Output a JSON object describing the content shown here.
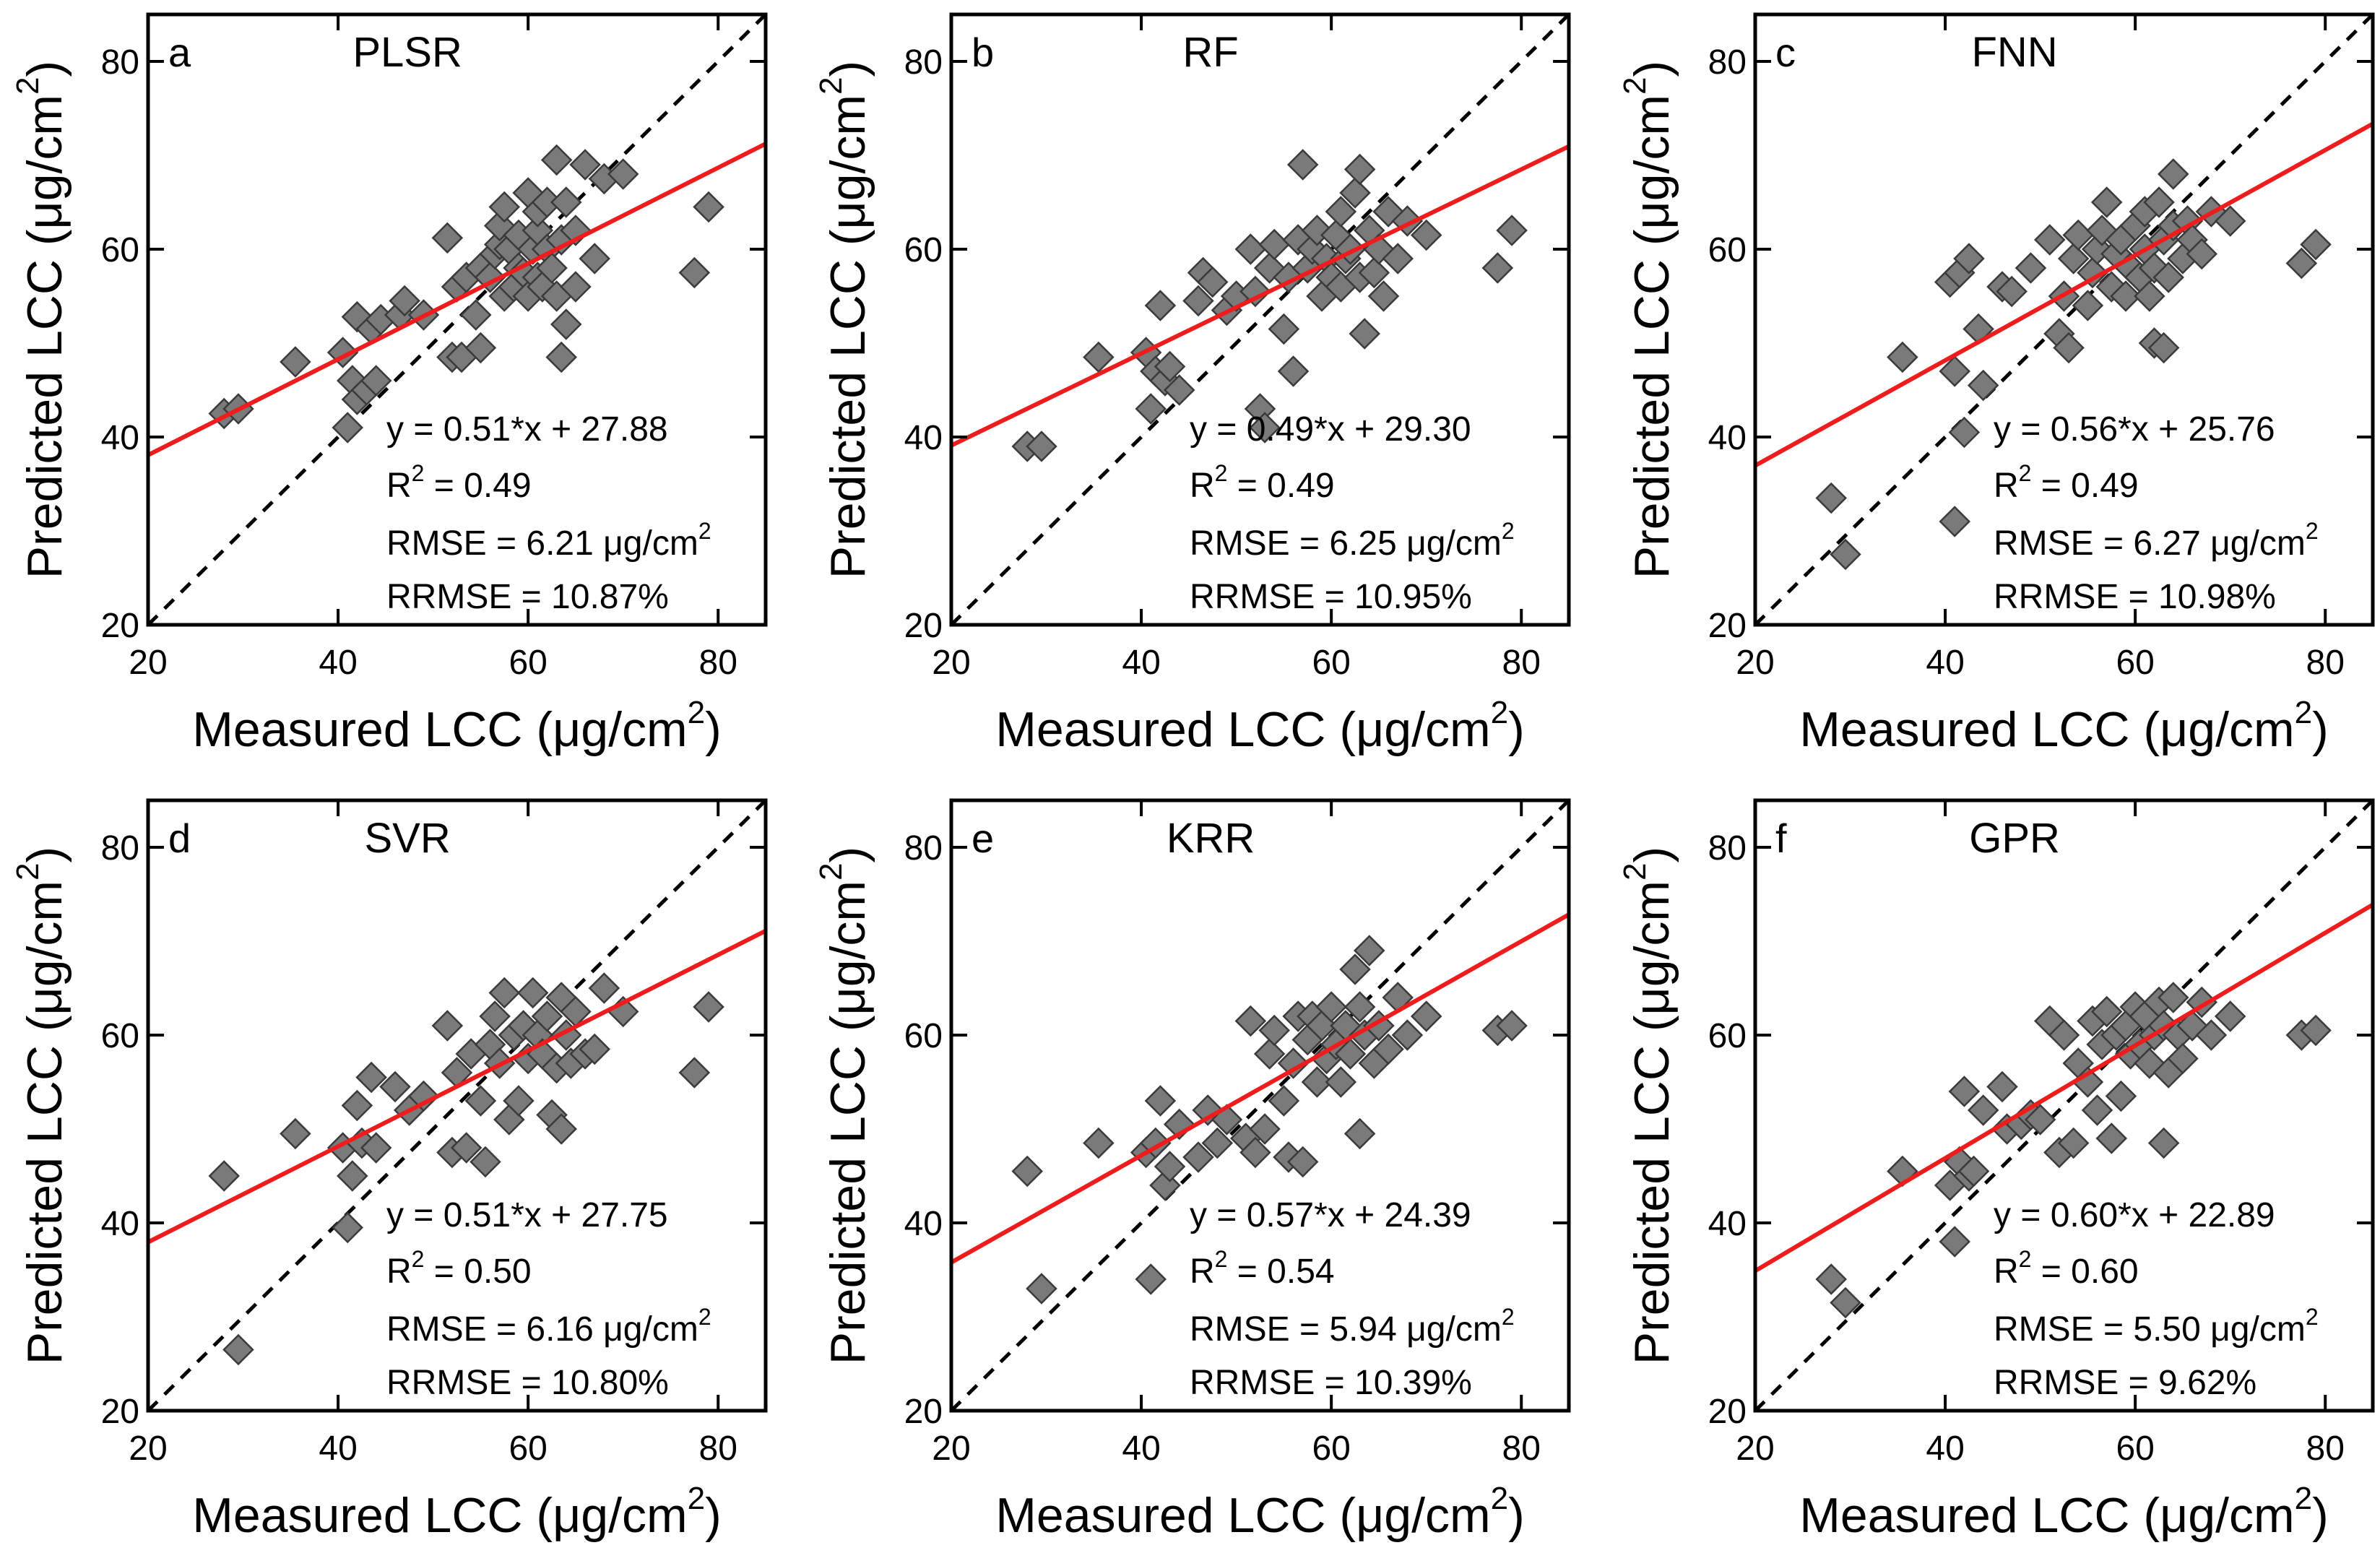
{
  "axis_labels": {
    "x_main": "Measured LCC (μg/cm",
    "y_main": "Predicted LCC (μg/cm",
    "unit_exp": "2",
    "unit_close": ")"
  },
  "chart_data": [
    {
      "type": "scatter",
      "panel": "a",
      "title": "PLSR",
      "xlabel": "Measured LCC (μg/cm²)",
      "ylabel": "Predicted LCC (μg/cm²)",
      "xlim": [
        20,
        85
      ],
      "ylim": [
        20,
        85
      ],
      "xticks": [
        "20",
        "40",
        "60",
        "80"
      ],
      "yticks": [
        "20",
        "40",
        "60",
        "80"
      ],
      "reference_line": "1:1",
      "fit": {
        "slope": 0.51,
        "intercept": 27.88
      },
      "stats": {
        "eq_text": "y = 0.51*x + 27.88",
        "r2_label": "R",
        "r2_exp": "2",
        "r2_value": " = 0.49",
        "rmse_text": "RMSE = 6.21 μg/cm",
        "rmse_exp": "2",
        "rrmse_text": "RRMSE = 10.87%"
      },
      "points": [
        [
          28,
          42.5
        ],
        [
          29.5,
          43
        ],
        [
          35.5,
          48
        ],
        [
          40.5,
          49
        ],
        [
          41,
          41
        ],
        [
          41.5,
          46
        ],
        [
          42,
          44
        ],
        [
          42,
          52.8
        ],
        [
          43,
          45
        ],
        [
          43.5,
          51.5
        ],
        [
          44,
          46
        ],
        [
          44.5,
          52.5
        ],
        [
          46.5,
          53
        ],
        [
          47,
          54.5
        ],
        [
          49,
          53
        ],
        [
          51.5,
          61.2
        ],
        [
          52,
          48.5
        ],
        [
          53,
          48.5
        ],
        [
          52.5,
          56
        ],
        [
          53.5,
          57
        ],
        [
          54.5,
          53
        ],
        [
          55,
          49.5
        ],
        [
          55,
          58
        ],
        [
          56,
          57
        ],
        [
          56.5,
          59.5
        ],
        [
          57,
          60.5
        ],
        [
          57.5,
          55
        ],
        [
          57,
          62.5
        ],
        [
          57.5,
          64.5
        ],
        [
          58,
          60
        ],
        [
          58.5,
          56
        ],
        [
          59,
          58
        ],
        [
          59,
          61.5
        ],
        [
          59.5,
          57.5
        ],
        [
          60,
          66
        ],
        [
          60,
          55
        ],
        [
          60.5,
          60
        ],
        [
          61,
          57
        ],
        [
          61,
          62
        ],
        [
          61,
          64
        ],
        [
          61.5,
          56
        ],
        [
          62,
          60
        ],
        [
          62,
          65
        ],
        [
          62.5,
          58
        ],
        [
          63,
          55
        ],
        [
          63,
          69.5
        ],
        [
          63.5,
          48.5
        ],
        [
          63.5,
          61
        ],
        [
          64,
          52
        ],
        [
          64,
          65
        ],
        [
          65,
          56
        ],
        [
          65,
          62
        ],
        [
          66,
          69
        ],
        [
          67,
          59
        ],
        [
          68,
          67.5
        ],
        [
          70,
          68
        ],
        [
          77.5,
          57.5
        ],
        [
          79,
          64.5
        ]
      ]
    },
    {
      "type": "scatter",
      "panel": "b",
      "title": "RF",
      "xlabel": "Measured LCC (μg/cm²)",
      "ylabel": "Predicted LCC (μg/cm²)",
      "xlim": [
        20,
        85
      ],
      "ylim": [
        20,
        85
      ],
      "xticks": [
        "20",
        "40",
        "60",
        "80"
      ],
      "yticks": [
        "20",
        "40",
        "60",
        "80"
      ],
      "reference_line": "1:1",
      "fit": {
        "slope": 0.49,
        "intercept": 29.3
      },
      "stats": {
        "eq_text": "y = 0.49*x + 29.30",
        "r2_label": "R",
        "r2_exp": "2",
        "r2_value": " = 0.49",
        "rmse_text": "RMSE = 6.25 μg/cm",
        "rmse_exp": "2",
        "rrmse_text": "RRMSE = 10.95%"
      },
      "points": [
        [
          28,
          39
        ],
        [
          29.5,
          39
        ],
        [
          35.5,
          48.5
        ],
        [
          40.5,
          49
        ],
        [
          41,
          43
        ],
        [
          41.5,
          47
        ],
        [
          42,
          54
        ],
        [
          42.5,
          46
        ],
        [
          43,
          47.5
        ],
        [
          44,
          45
        ],
        [
          46,
          54.5
        ],
        [
          46.5,
          57.5
        ],
        [
          47.5,
          56.5
        ],
        [
          49,
          53.5
        ],
        [
          50,
          55
        ],
        [
          51.5,
          60
        ],
        [
          52,
          55.5
        ],
        [
          52.5,
          43
        ],
        [
          53,
          41
        ],
        [
          53.5,
          58
        ],
        [
          54,
          60.5
        ],
        [
          55,
          51.5
        ],
        [
          55.5,
          57
        ],
        [
          56,
          47
        ],
        [
          56.5,
          61
        ],
        [
          57,
          69
        ],
        [
          57.5,
          58
        ],
        [
          58,
          60
        ],
        [
          58.5,
          62
        ],
        [
          59,
          55
        ],
        [
          59.5,
          59
        ],
        [
          60,
          57
        ],
        [
          60.5,
          61.5
        ],
        [
          61,
          56
        ],
        [
          61,
          64
        ],
        [
          61.5,
          59
        ],
        [
          62,
          60
        ],
        [
          62.5,
          66
        ],
        [
          63,
          57
        ],
        [
          63,
          68.5
        ],
        [
          63.5,
          51
        ],
        [
          64,
          62
        ],
        [
          64.5,
          57.5
        ],
        [
          65,
          60
        ],
        [
          65.5,
          55
        ],
        [
          66,
          64
        ],
        [
          67,
          59
        ],
        [
          68,
          63
        ],
        [
          70,
          61.5
        ],
        [
          77.5,
          58
        ],
        [
          79,
          62
        ]
      ]
    },
    {
      "type": "scatter",
      "panel": "c",
      "title": "FNN",
      "xlabel": "Measured LCC (μg/cm²)",
      "ylabel": "Predicted LCC (μg/cm²)",
      "xlim": [
        20,
        85
      ],
      "ylim": [
        20,
        85
      ],
      "xticks": [
        "20",
        "40",
        "60",
        "80"
      ],
      "yticks": [
        "20",
        "40",
        "60",
        "80"
      ],
      "reference_line": "1:1",
      "fit": {
        "slope": 0.56,
        "intercept": 25.76
      },
      "stats": {
        "eq_text": "y = 0.56*x + 25.76",
        "r2_label": "R",
        "r2_exp": "2",
        "r2_value": " = 0.49",
        "rmse_text": "RMSE = 6.27 μg/cm",
        "rmse_exp": "2",
        "rrmse_text": "RRMSE = 10.98%"
      },
      "points": [
        [
          28,
          33.5
        ],
        [
          29.5,
          27.5
        ],
        [
          35.5,
          48.5
        ],
        [
          40.5,
          56.5
        ],
        [
          41,
          31
        ],
        [
          41,
          47
        ],
        [
          41.5,
          57.5
        ],
        [
          42,
          40.5
        ],
        [
          42.5,
          59
        ],
        [
          43.5,
          51.5
        ],
        [
          44,
          45.5
        ],
        [
          46,
          56
        ],
        [
          47,
          55.5
        ],
        [
          49,
          58
        ],
        [
          51,
          61
        ],
        [
          52,
          51
        ],
        [
          52.5,
          55
        ],
        [
          53,
          49.5
        ],
        [
          53.5,
          59
        ],
        [
          54,
          61.5
        ],
        [
          55,
          54
        ],
        [
          55.5,
          57.5
        ],
        [
          56,
          60
        ],
        [
          56.5,
          62
        ],
        [
          57,
          65
        ],
        [
          57.5,
          56
        ],
        [
          58,
          59.5
        ],
        [
          58.5,
          61
        ],
        [
          59,
          55
        ],
        [
          59.5,
          58
        ],
        [
          60,
          62.5
        ],
        [
          60.5,
          57
        ],
        [
          61,
          60
        ],
        [
          61,
          64
        ],
        [
          61.5,
          55
        ],
        [
          62,
          50
        ],
        [
          62,
          58
        ],
        [
          62.5,
          65
        ],
        [
          63,
          61
        ],
        [
          63,
          49.5
        ],
        [
          63.5,
          57
        ],
        [
          64,
          68
        ],
        [
          64,
          62.5
        ],
        [
          65,
          59
        ],
        [
          65.5,
          63
        ],
        [
          66,
          61
        ],
        [
          67,
          59.5
        ],
        [
          68,
          64
        ],
        [
          70,
          63
        ],
        [
          77.5,
          58.5
        ],
        [
          79,
          60.5
        ]
      ]
    },
    {
      "type": "scatter",
      "panel": "d",
      "title": "SVR",
      "xlabel": "Measured LCC (μg/cm²)",
      "ylabel": "Predicted LCC (μg/cm²)",
      "xlim": [
        20,
        85
      ],
      "ylim": [
        20,
        85
      ],
      "xticks": [
        "20",
        "40",
        "60",
        "80"
      ],
      "yticks": [
        "20",
        "40",
        "60",
        "80"
      ],
      "reference_line": "1:1",
      "fit": {
        "slope": 0.51,
        "intercept": 27.75
      },
      "stats": {
        "eq_text": "y = 0.51*x + 27.75",
        "r2_label": "R",
        "r2_exp": "2",
        "r2_value": " = 0.50",
        "rmse_text": "RMSE = 6.16 μg/cm",
        "rmse_exp": "2",
        "rrmse_text": "RRMSE = 10.80%"
      },
      "points": [
        [
          28,
          45
        ],
        [
          29.5,
          26.5
        ],
        [
          35.5,
          49.5
        ],
        [
          40.5,
          48
        ],
        [
          41,
          39.5
        ],
        [
          41.5,
          45
        ],
        [
          42,
          52.5
        ],
        [
          42.5,
          48.5
        ],
        [
          43.5,
          55.5
        ],
        [
          44,
          48
        ],
        [
          46,
          54.5
        ],
        [
          47.5,
          52
        ],
        [
          49,
          53.5
        ],
        [
          51.5,
          61
        ],
        [
          52,
          47.5
        ],
        [
          52.5,
          56
        ],
        [
          53.5,
          48
        ],
        [
          54,
          58
        ],
        [
          55,
          53
        ],
        [
          55.5,
          46.5
        ],
        [
          56,
          59
        ],
        [
          56.5,
          62
        ],
        [
          57,
          57
        ],
        [
          57.5,
          64.5
        ],
        [
          58,
          51
        ],
        [
          58.5,
          60
        ],
        [
          59,
          53
        ],
        [
          59.5,
          61
        ],
        [
          60,
          57.5
        ],
        [
          60.5,
          64.5
        ],
        [
          61,
          60
        ],
        [
          61.5,
          58
        ],
        [
          62,
          62
        ],
        [
          62.5,
          51.5
        ],
        [
          63,
          56.5
        ],
        [
          63.5,
          50
        ],
        [
          63.5,
          64
        ],
        [
          64,
          60
        ],
        [
          64.5,
          57
        ],
        [
          65,
          62.5
        ],
        [
          66,
          58
        ],
        [
          67,
          58.5
        ],
        [
          68,
          65
        ],
        [
          70,
          62.5
        ],
        [
          77.5,
          56
        ],
        [
          79,
          63
        ]
      ]
    },
    {
      "type": "scatter",
      "panel": "e",
      "title": "KRR",
      "xlabel": "Measured LCC (μg/cm²)",
      "ylabel": "Predicted LCC (μg/cm²)",
      "xlim": [
        20,
        85
      ],
      "ylim": [
        20,
        85
      ],
      "xticks": [
        "20",
        "40",
        "60",
        "80"
      ],
      "yticks": [
        "20",
        "40",
        "60",
        "80"
      ],
      "reference_line": "1:1",
      "fit": {
        "slope": 0.57,
        "intercept": 24.39
      },
      "stats": {
        "eq_text": "y = 0.57*x + 24.39",
        "r2_label": "R",
        "r2_exp": "2",
        "r2_value": " = 0.54",
        "rmse_text": "RMSE = 5.94 μg/cm",
        "rmse_exp": "2",
        "rrmse_text": "RRMSE = 10.39%"
      },
      "points": [
        [
          28,
          45.5
        ],
        [
          29.5,
          33
        ],
        [
          35.5,
          48.5
        ],
        [
          40.5,
          47.5
        ],
        [
          41,
          34
        ],
        [
          41.5,
          48.5
        ],
        [
          42,
          53
        ],
        [
          42.5,
          44
        ],
        [
          43,
          46
        ],
        [
          44,
          50.5
        ],
        [
          46,
          47
        ],
        [
          47,
          52
        ],
        [
          48,
          48.5
        ],
        [
          49,
          51
        ],
        [
          51,
          49
        ],
        [
          51.5,
          61.5
        ],
        [
          52,
          47.5
        ],
        [
          53,
          50
        ],
        [
          53.5,
          58
        ],
        [
          54,
          60.5
        ],
        [
          55,
          53
        ],
        [
          55.5,
          47
        ],
        [
          56,
          57
        ],
        [
          56.5,
          62
        ],
        [
          57,
          46.5
        ],
        [
          57.5,
          59.5
        ],
        [
          58,
          62
        ],
        [
          58.5,
          55
        ],
        [
          59,
          61
        ],
        [
          59.5,
          57.5
        ],
        [
          60,
          63
        ],
        [
          60.5,
          59
        ],
        [
          61,
          55
        ],
        [
          61.5,
          61
        ],
        [
          62,
          58
        ],
        [
          62.5,
          67
        ],
        [
          63,
          49.5
        ],
        [
          63,
          63
        ],
        [
          63.5,
          60
        ],
        [
          64,
          69
        ],
        [
          64.5,
          57
        ],
        [
          65,
          61
        ],
        [
          66,
          58.5
        ],
        [
          67,
          64
        ],
        [
          68,
          60
        ],
        [
          70,
          62
        ],
        [
          77.5,
          60.5
        ],
        [
          79,
          61
        ]
      ]
    },
    {
      "type": "scatter",
      "panel": "f",
      "title": "GPR",
      "xlabel": "Measured LCC (μg/cm²)",
      "ylabel": "Predicted LCC (μg/cm²)",
      "xlim": [
        20,
        85
      ],
      "ylim": [
        20,
        85
      ],
      "xticks": [
        "20",
        "40",
        "60",
        "80"
      ],
      "yticks": [
        "20",
        "40",
        "60",
        "80"
      ],
      "reference_line": "1:1",
      "fit": {
        "slope": 0.6,
        "intercept": 22.89
      },
      "stats": {
        "eq_text": "y = 0.60*x + 22.89",
        "r2_label": "R",
        "r2_exp": "2",
        "r2_value": " = 0.60",
        "rmse_text": "RMSE = 5.50 μg/cm",
        "rmse_exp": "2",
        "rrmse_text": "RRMSE = 9.62%"
      },
      "points": [
        [
          28,
          34
        ],
        [
          29.5,
          31.5
        ],
        [
          35.5,
          45.5
        ],
        [
          40.5,
          44
        ],
        [
          41,
          38
        ],
        [
          41.5,
          46.5
        ],
        [
          42,
          54
        ],
        [
          42.5,
          45
        ],
        [
          43,
          45.5
        ],
        [
          44,
          52
        ],
        [
          46,
          54.5
        ],
        [
          46.5,
          50
        ],
        [
          48,
          50.5
        ],
        [
          49,
          51.5
        ],
        [
          50,
          51
        ],
        [
          51,
          61.5
        ],
        [
          52,
          47.5
        ],
        [
          52.5,
          60
        ],
        [
          53.5,
          48.5
        ],
        [
          54,
          57
        ],
        [
          55,
          55
        ],
        [
          55.5,
          61.5
        ],
        [
          56,
          52
        ],
        [
          56.5,
          59
        ],
        [
          57,
          62.5
        ],
        [
          57.5,
          49
        ],
        [
          58,
          60
        ],
        [
          58.5,
          53.5
        ],
        [
          59,
          61
        ],
        [
          59.5,
          58
        ],
        [
          60,
          63
        ],
        [
          60.5,
          59
        ],
        [
          61,
          62
        ],
        [
          61.5,
          57
        ],
        [
          62,
          60
        ],
        [
          62.5,
          63.5
        ],
        [
          63,
          48.5
        ],
        [
          63,
          61
        ],
        [
          63.5,
          56
        ],
        [
          64,
          64
        ],
        [
          64.5,
          60
        ],
        [
          65,
          57.5
        ],
        [
          66,
          61
        ],
        [
          67,
          63.5
        ],
        [
          68,
          60
        ],
        [
          70,
          62
        ],
        [
          77.5,
          60
        ],
        [
          79,
          60.5
        ]
      ]
    }
  ]
}
